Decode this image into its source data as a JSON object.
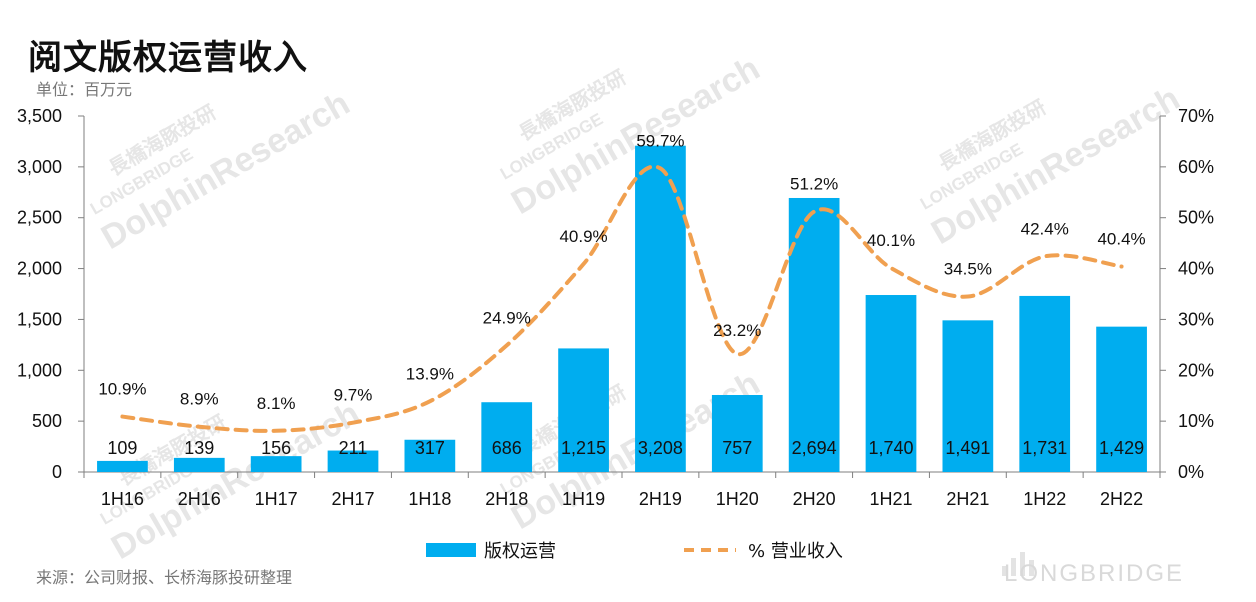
{
  "header": {
    "title": "阅文版权运营收入",
    "unit": "单位：百万元"
  },
  "footer": {
    "source": "来源：公司财报、长桥海豚投研整理",
    "brand": "LONGBRIDGE"
  },
  "watermark": {
    "line1": "DolphinResearch",
    "line2": "LONGBRIDGE",
    "line3": "長橋海豚投研"
  },
  "colors": {
    "bar": "#00adef",
    "line": "#f0a050",
    "axis": "#7f7f7f"
  },
  "chart_data": {
    "type": "bar",
    "title": "阅文版权运营收入",
    "categories": [
      "1H16",
      "2H16",
      "1H17",
      "2H17",
      "1H18",
      "2H18",
      "1H19",
      "2H19",
      "1H20",
      "2H20",
      "1H21",
      "2H21",
      "1H22",
      "2H22"
    ],
    "series": [
      {
        "name": "版权运营",
        "type": "bar",
        "axis": "left",
        "values": [
          109,
          139,
          156,
          211,
          317,
          686,
          1215,
          3208,
          757,
          2694,
          1740,
          1491,
          1731,
          1429
        ],
        "labels": [
          "109",
          "139",
          "156",
          "211",
          "317",
          "686",
          "1,215",
          "3,208",
          "757",
          "2,694",
          "1,740",
          "1,491",
          "1,731",
          "1,429"
        ]
      },
      {
        "name": "% 营业收入",
        "type": "line",
        "style": "dashed",
        "axis": "right",
        "values": [
          10.9,
          8.9,
          8.1,
          9.7,
          13.9,
          24.9,
          40.9,
          59.7,
          23.2,
          51.2,
          40.1,
          34.5,
          42.4,
          40.4
        ],
        "labels": [
          "10.9%",
          "8.9%",
          "8.1%",
          "9.7%",
          "13.9%",
          "24.9%",
          "40.9%",
          "59.7%",
          "23.2%",
          "51.2%",
          "40.1%",
          "34.5%",
          "42.4%",
          "40.4%"
        ]
      }
    ],
    "y_left": {
      "ylim": [
        0,
        3500
      ],
      "ticks": [
        "0",
        "500",
        "1,000",
        "1,500",
        "2,000",
        "2,500",
        "3,000",
        "3,500"
      ]
    },
    "y_right": {
      "ylim": [
        0,
        70
      ],
      "ticks": [
        "0%",
        "10%",
        "20%",
        "30%",
        "40%",
        "50%",
        "60%",
        "70%"
      ]
    },
    "grid": false,
    "legend_position": "bottom-center"
  }
}
